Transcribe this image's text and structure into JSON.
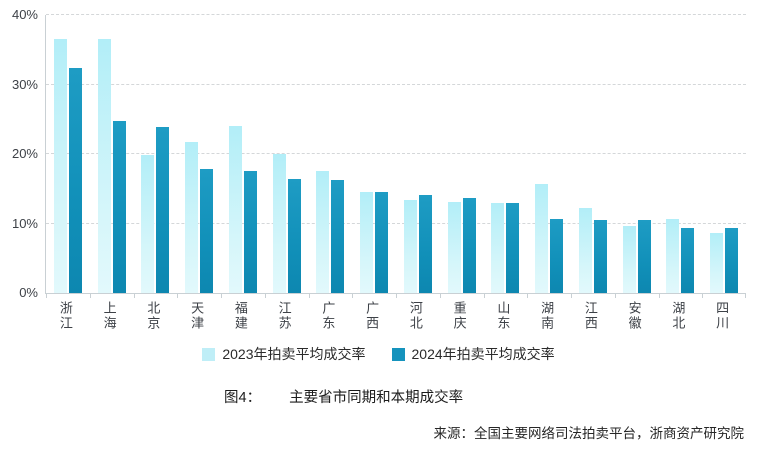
{
  "chart_data": {
    "type": "bar",
    "title": "图4： 主要省市同期和本期成交率",
    "categories": [
      "浙江",
      "上海",
      "北京",
      "天津",
      "福建",
      "江苏",
      "广东",
      "广西",
      "河北",
      "重庆",
      "山东",
      "湖南",
      "江西",
      "安徽",
      "湖北",
      "四川"
    ],
    "series": [
      {
        "name": "2023年拍卖平均成交率",
        "color": "#bfeef7",
        "values": [
          36.5,
          36.5,
          19.8,
          21.7,
          24.0,
          20.0,
          17.6,
          14.5,
          13.4,
          13.1,
          12.9,
          15.7,
          12.3,
          9.6,
          10.7,
          8.6
        ]
      },
      {
        "name": "2024年拍卖平均成交率",
        "color": "#1593bd",
        "values": [
          32.4,
          24.8,
          23.9,
          17.8,
          17.5,
          16.4,
          16.2,
          14.6,
          14.1,
          13.6,
          12.9,
          10.7,
          10.5,
          10.5,
          9.4,
          9.4
        ]
      }
    ],
    "ylim": [
      0,
      40
    ],
    "yticks": [
      {
        "value": 0,
        "label": "0%"
      },
      {
        "value": 10,
        "label": "10%"
      },
      {
        "value": 20,
        "label": "20%"
      },
      {
        "value": 30,
        "label": "30%"
      },
      {
        "value": 40,
        "label": "40%"
      }
    ],
    "grid": "horizontal-dashed",
    "legend_position": "bottom"
  },
  "caption": {
    "prefix": "图4：",
    "text": "主要省市同期和本期成交率"
  },
  "source": {
    "text": "来源：全国主要网络司法拍卖平台，浙商资产研究院"
  },
  "colors": {
    "bar_2023": "#bfeef7",
    "bar_2024": "#1593bd",
    "gridline": "#d4d7d9",
    "axis": "#c9d0d4",
    "axis_label": "#3d4147"
  }
}
